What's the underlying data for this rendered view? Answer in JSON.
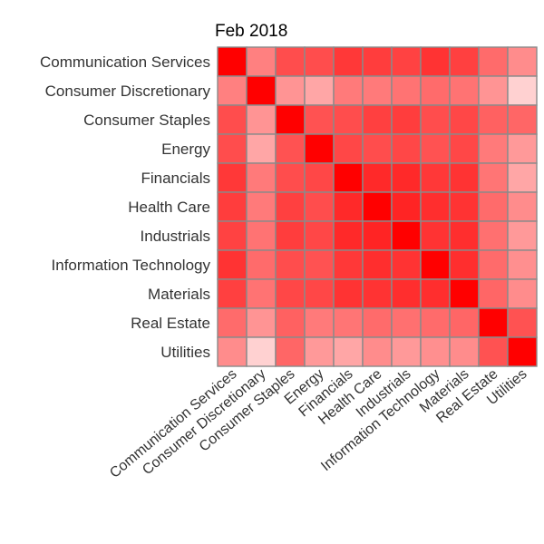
{
  "chart_data": {
    "type": "heatmap",
    "title": "Feb 2018",
    "xlabel": "",
    "ylabel": "",
    "categories": [
      "Communication Services",
      "Consumer Discretionary",
      "Consumer Staples",
      "Energy",
      "Financials",
      "Health Care",
      "Industrials",
      "Information Technology",
      "Materials",
      "Real Estate",
      "Utilities"
    ],
    "value_range": [
      0,
      1
    ],
    "color_low": "#ffffff",
    "color_high": "#ff0000",
    "grid": false,
    "legend": "none",
    "values": [
      [
        1.0,
        0.5,
        0.7,
        0.7,
        0.78,
        0.76,
        0.74,
        0.8,
        0.75,
        0.58,
        0.45
      ],
      [
        0.5,
        1.0,
        0.42,
        0.35,
        0.52,
        0.52,
        0.55,
        0.58,
        0.55,
        0.42,
        0.18
      ],
      [
        0.7,
        0.42,
        1.0,
        0.68,
        0.7,
        0.75,
        0.76,
        0.7,
        0.72,
        0.62,
        0.6
      ],
      [
        0.7,
        0.35,
        0.68,
        1.0,
        0.72,
        0.7,
        0.72,
        0.68,
        0.72,
        0.52,
        0.4
      ],
      [
        0.78,
        0.52,
        0.7,
        0.72,
        1.0,
        0.84,
        0.84,
        0.78,
        0.8,
        0.54,
        0.35
      ],
      [
        0.76,
        0.52,
        0.75,
        0.7,
        0.84,
        1.0,
        0.86,
        0.82,
        0.8,
        0.58,
        0.45
      ],
      [
        0.74,
        0.55,
        0.76,
        0.72,
        0.84,
        0.86,
        1.0,
        0.8,
        0.82,
        0.56,
        0.4
      ],
      [
        0.8,
        0.58,
        0.7,
        0.68,
        0.78,
        0.82,
        0.8,
        1.0,
        0.82,
        0.58,
        0.44
      ],
      [
        0.75,
        0.55,
        0.72,
        0.72,
        0.8,
        0.8,
        0.82,
        0.82,
        1.0,
        0.6,
        0.45
      ],
      [
        0.58,
        0.42,
        0.62,
        0.52,
        0.54,
        0.58,
        0.56,
        0.58,
        0.6,
        1.0,
        0.68
      ],
      [
        0.45,
        0.18,
        0.6,
        0.4,
        0.35,
        0.45,
        0.4,
        0.44,
        0.45,
        0.68,
        1.0
      ]
    ]
  }
}
